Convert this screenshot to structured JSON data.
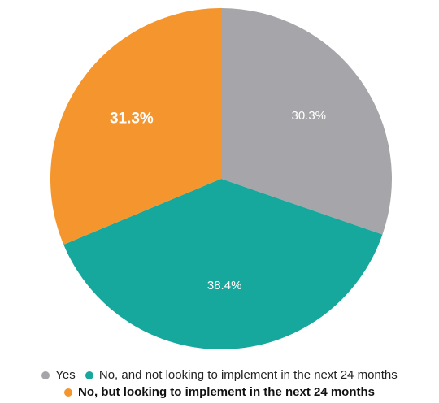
{
  "chart_data": {
    "type": "pie",
    "slices": [
      {
        "label": "Yes",
        "value": 30.3,
        "display": "30.3%",
        "color": "#a6a6aa"
      },
      {
        "label": "No, and not looking to implement in the next 24 months",
        "value": 38.4,
        "display": "38.4%",
        "color": "#16a89c"
      },
      {
        "label": "No, but looking to implement in the next 24 months",
        "value": 31.3,
        "display": "31.3%",
        "color": "#f4962d"
      }
    ],
    "start_angle_deg": 0,
    "direction": "clockwise",
    "legend_position": "bottom"
  }
}
